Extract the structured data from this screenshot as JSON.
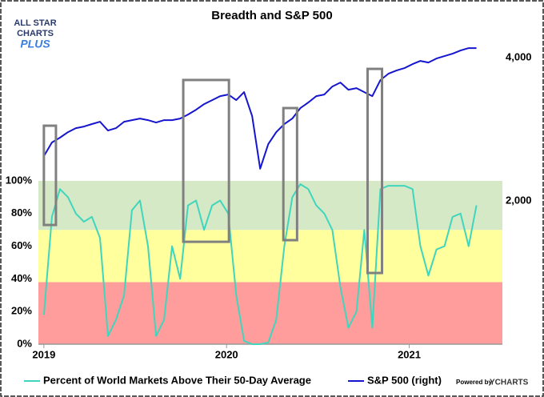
{
  "chart_data": {
    "type": "line",
    "title": "Breadth and S&P 500",
    "logo": [
      "ALL STAR",
      "CHARTS",
      "PLUS"
    ],
    "credit": [
      "Powered by",
      "YCHARTS"
    ],
    "x": [
      2019.0,
      2019.044,
      2019.088,
      2019.132,
      2019.175,
      2019.219,
      2019.263,
      2019.307,
      2019.351,
      2019.395,
      2019.439,
      2019.482,
      2019.526,
      2019.57,
      2019.614,
      2019.658,
      2019.702,
      2019.746,
      2019.789,
      2019.833,
      2019.877,
      2019.921,
      2019.965,
      2020.009,
      2020.053,
      2020.096,
      2020.14,
      2020.184,
      2020.228,
      2020.272,
      2020.316,
      2020.36,
      2020.404,
      2020.447,
      2020.491,
      2020.535,
      2020.579,
      2020.623,
      2020.667,
      2020.711,
      2020.754,
      2020.798,
      2020.842,
      2020.886,
      2020.93,
      2020.974,
      2021.018,
      2021.061,
      2021.105,
      2021.149,
      2021.193,
      2021.237,
      2021.281,
      2021.325,
      2021.368
    ],
    "series": [
      {
        "name": "Percent of World Markets Above Their 50-Day Average",
        "color": "#3fd6bd",
        "values": [
          18,
          78,
          95,
          90,
          80,
          75,
          78,
          65,
          5,
          15,
          30,
          82,
          88,
          60,
          5,
          15,
          60,
          40,
          85,
          88,
          70,
          85,
          88,
          80,
          30,
          2,
          0,
          0,
          1,
          15,
          60,
          90,
          98,
          95,
          85,
          80,
          70,
          35,
          10,
          20,
          70,
          10,
          95,
          97,
          97,
          97,
          95,
          60,
          42,
          58,
          60,
          78,
          80,
          60,
          85
        ]
      },
      {
        "name": "S&P 500 (right)",
        "color": "#1515d0",
        "axis": "y2",
        "values": [
          2626,
          2816,
          2883,
          2961,
          3017,
          3039,
          3073,
          3106,
          2983,
          3017,
          3106,
          3128,
          3151,
          3128,
          3095,
          3128,
          3128,
          3151,
          3207,
          3274,
          3352,
          3408,
          3464,
          3486,
          3408,
          3520,
          3184,
          2450,
          2793,
          2961,
          3073,
          3151,
          3296,
          3374,
          3464,
          3486,
          3598,
          3654,
          3553,
          3575,
          3520,
          3464,
          3687,
          3777,
          3821,
          3855,
          3911,
          3955,
          3933,
          3989,
          4022,
          4056,
          4101,
          4134,
          4134
        ]
      }
    ],
    "xlim": [
      2018.97,
      2021.51
    ],
    "xticks": [
      2019,
      2020,
      2021
    ],
    "ylim": [
      0,
      200
    ],
    "yticks": [
      {
        "value": 0,
        "label": "0%"
      },
      {
        "value": 20,
        "label": "20%"
      },
      {
        "value": 40,
        "label": "40%"
      },
      {
        "value": 60,
        "label": "60%"
      },
      {
        "value": 80,
        "label": "80%"
      },
      {
        "value": 100,
        "label": "100%"
      }
    ],
    "y2lim": [
      0,
      4560
    ],
    "y2ticks": [
      {
        "value": 2000,
        "label": "2,000"
      },
      {
        "value": 4000,
        "label": "4,000"
      }
    ],
    "bands": [
      {
        "from": 0,
        "to": 38,
        "color": "#ff9c9c"
      },
      {
        "from": 38,
        "to": 70,
        "color": "#ffff9e"
      },
      {
        "from": 70,
        "to": 100,
        "color": "#d6e9c6"
      }
    ],
    "highlights": [
      {
        "x": [
          2019.0,
          2019.066
        ],
        "y": [
          73.0,
          133.8
        ]
      },
      {
        "x": [
          2019.763,
          2020.013
        ],
        "y": [
          62.7,
          161.8
        ]
      },
      {
        "x": [
          2020.311,
          2020.386
        ],
        "y": [
          63.7,
          144.6
        ]
      },
      {
        "x": [
          2020.772,
          2020.851
        ],
        "y": [
          43.6,
          168.6
        ]
      }
    ],
    "legend": "bottom"
  }
}
